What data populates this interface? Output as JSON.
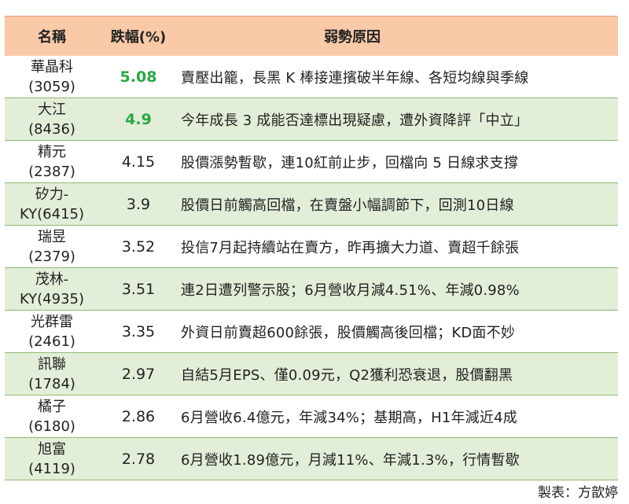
{
  "table": {
    "headers": [
      "名稱",
      "跌幅(%)",
      "弱勢原因"
    ],
    "rows": [
      {
        "name": "華晶科",
        "code": "(3059)",
        "pct": "5.08",
        "highlight": true,
        "reason": "賣壓出籠，長黑 K 棒接連擯破半年線、各短均線與季線"
      },
      {
        "name": "大江",
        "code": "(8436)",
        "pct": "4.9",
        "highlight": true,
        "reason": "今年成長 3 成能否達標出現疑慮，遭外資降評「中立」"
      },
      {
        "name": "精元",
        "code": "(2387)",
        "pct": "4.15",
        "highlight": false,
        "reason": "股價漲勢暫歇，連10紅前止步，回檔向 5 日線求支撐"
      },
      {
        "name": "矽力-",
        "code": "KY(6415)",
        "pct": "3.9",
        "highlight": false,
        "reason": "股價日前觸高回檔，在賣盤小幅調節下，回測10日線"
      },
      {
        "name": "瑞昱",
        "code": "(2379)",
        "pct": "3.52",
        "highlight": false,
        "reason": "投信7月起持續站在賣方，昨再擴大力道、賣超千餘張"
      },
      {
        "name": "茂林-",
        "code": "KY(4935)",
        "pct": "3.51",
        "highlight": false,
        "reason": "連2日遭列警示股；6月營收月減4.51%、年減0.98%"
      },
      {
        "name": "光群雷",
        "code": "(2461)",
        "pct": "3.35",
        "highlight": false,
        "reason": "外資日前賣超600餘張，股價觸高後回檔；KD面不妙"
      },
      {
        "name": "訊聯",
        "code": "(1784)",
        "pct": "2.97",
        "highlight": false,
        "reason": "自結5月EPS、僅0.09元，Q2獲利恐衰退，股價翻黑"
      },
      {
        "name": "橘子",
        "code": "(6180)",
        "pct": "2.86",
        "highlight": false,
        "reason": "6月營收6.4億元，年減34%；基期高，H1年減近4成"
      },
      {
        "name": "旭富",
        "code": "(4119)",
        "pct": "2.78",
        "highlight": false,
        "reason": "6月營收1.89億元，月減11%、年減1.3%，行情暫歇"
      }
    ]
  },
  "credit": "製表：方歆婷",
  "colors": {
    "header_bg": "#f9c9a8",
    "alt_row_bg": "#e3eed8",
    "highlight_pct": "#28a745"
  }
}
